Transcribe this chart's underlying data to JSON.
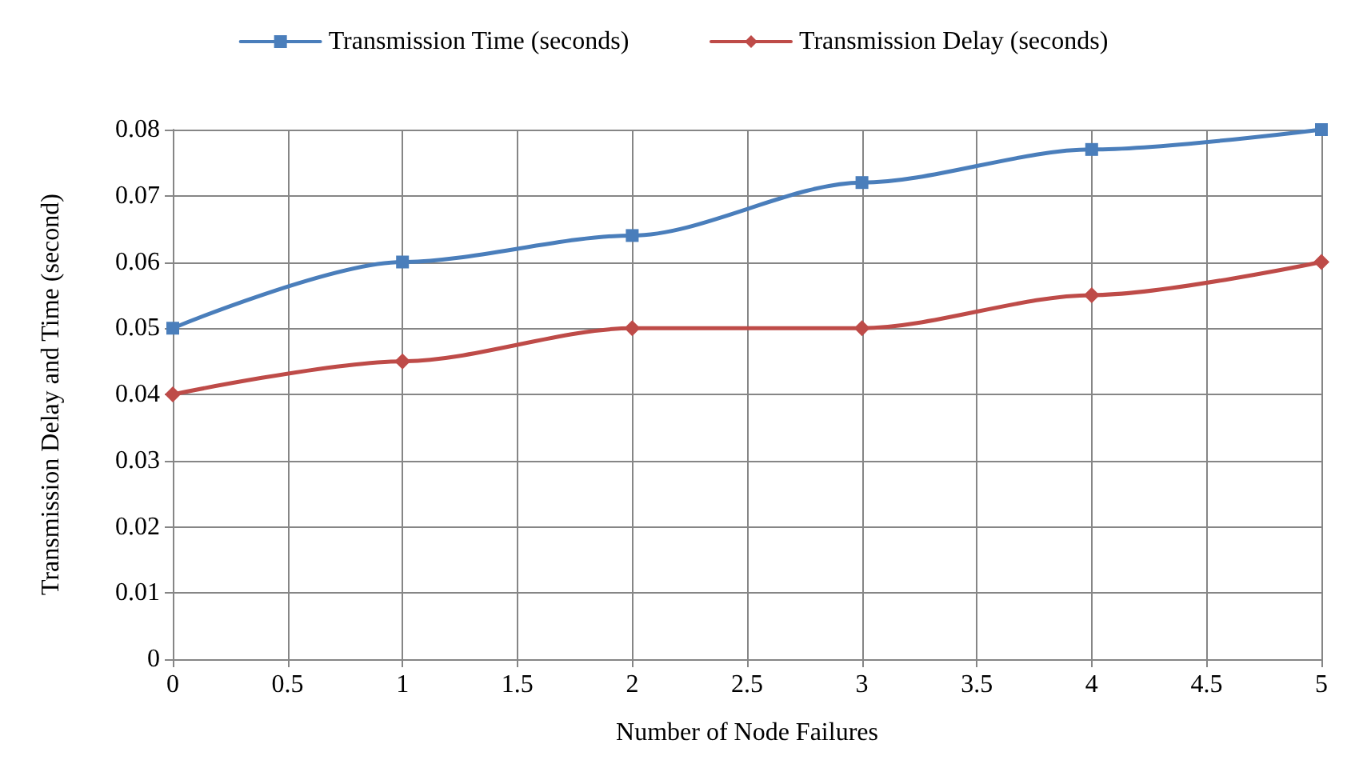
{
  "chart_data": {
    "type": "line",
    "xlabel": "Number of Node Failures",
    "ylabel": "Transmission Delay and Time (second)",
    "x": [
      0,
      1,
      2,
      3,
      4,
      5
    ],
    "series": [
      {
        "name": "Transmission Time (seconds)",
        "color": "#4a7ebb",
        "marker": "square",
        "values": [
          0.05,
          0.06,
          0.064,
          0.072,
          0.077,
          0.08
        ]
      },
      {
        "name": "Transmission Delay (seconds)",
        "color": "#be4b48",
        "marker": "diamond",
        "values": [
          0.04,
          0.045,
          0.05,
          0.05,
          0.055,
          0.06
        ]
      }
    ],
    "xlim": [
      0,
      5
    ],
    "xticks": [
      0,
      0.5,
      1,
      1.5,
      2,
      2.5,
      3,
      3.5,
      4,
      4.5,
      5
    ],
    "ylim": [
      0,
      0.08
    ],
    "yticks": [
      0,
      0.01,
      0.02,
      0.03,
      0.04,
      0.05,
      0.06,
      0.07,
      0.08
    ],
    "grid": true,
    "legend": "top",
    "line_style": "solid"
  }
}
